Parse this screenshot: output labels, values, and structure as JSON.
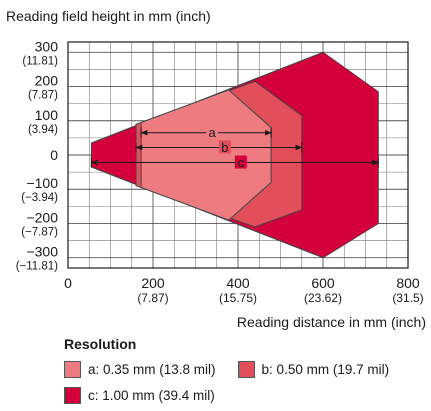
{
  "chart_data": {
    "type": "area",
    "ylabel": "Reading field height in mm (inch)",
    "xlabel": "Reading distance in mm (inch)",
    "xlim": [
      0,
      800
    ],
    "ylim": [
      -330,
      330
    ],
    "x_ticks": [
      {
        "value": 0,
        "label": "0",
        "sub": ""
      },
      {
        "value": 200,
        "label": "200",
        "sub": "(7.87)"
      },
      {
        "value": 400,
        "label": "400",
        "sub": "(15.75)"
      },
      {
        "value": 600,
        "label": "600",
        "sub": "(23.62)"
      },
      {
        "value": 800,
        "label": "800",
        "sub": "(31.5)"
      }
    ],
    "y_ticks": [
      {
        "value": 300,
        "label": "300",
        "sub": "(11.81)"
      },
      {
        "value": 200,
        "label": "200",
        "sub": "(7.87)"
      },
      {
        "value": 100,
        "label": "100",
        "sub": "(3.94)"
      },
      {
        "value": 0,
        "label": "0",
        "sub": ""
      },
      {
        "value": -100,
        "label": "−100",
        "sub": "(−3.94)"
      },
      {
        "value": -200,
        "label": "−200",
        "sub": "(−7.87)"
      },
      {
        "value": -300,
        "label": "−300",
        "sub": "(−11.81)"
      }
    ],
    "grid": true,
    "series": [
      {
        "name": "c: 1.00 mm (39.4 mil)",
        "key": "c",
        "color": "#d4003c",
        "polygon": [
          [
            55,
            35
          ],
          [
            600,
            300
          ],
          [
            730,
            185
          ],
          [
            730,
            -200
          ],
          [
            600,
            -300
          ],
          [
            55,
            -35
          ]
        ],
        "range": [
          55,
          730
        ]
      },
      {
        "name": "b: 0.50 mm (19.7 mil)",
        "key": "b",
        "color": "#e24e5a",
        "polygon": [
          [
            160,
            90
          ],
          [
            440,
            215
          ],
          [
            550,
            115
          ],
          [
            550,
            -160
          ],
          [
            440,
            -210
          ],
          [
            160,
            -90
          ]
        ],
        "range": [
          160,
          550
        ]
      },
      {
        "name": "a: 0.35 mm (13.8 mil)",
        "key": "a",
        "color": "#ee7b7f",
        "polygon": [
          [
            172,
            95
          ],
          [
            378,
            190
          ],
          [
            478,
            80
          ],
          [
            478,
            -80
          ],
          [
            378,
            -190
          ],
          [
            172,
            -95
          ]
        ],
        "range": [
          172,
          478
        ]
      }
    ],
    "dimension_lines": [
      {
        "label": "a",
        "from": 172,
        "to": 478,
        "y": 65
      },
      {
        "label": "b",
        "from": 160,
        "to": 550,
        "y": 22
      },
      {
        "label": "c",
        "from": 55,
        "to": 730,
        "y": -22
      }
    ],
    "legend_title": "Resolution",
    "legend_position": "bottom"
  }
}
